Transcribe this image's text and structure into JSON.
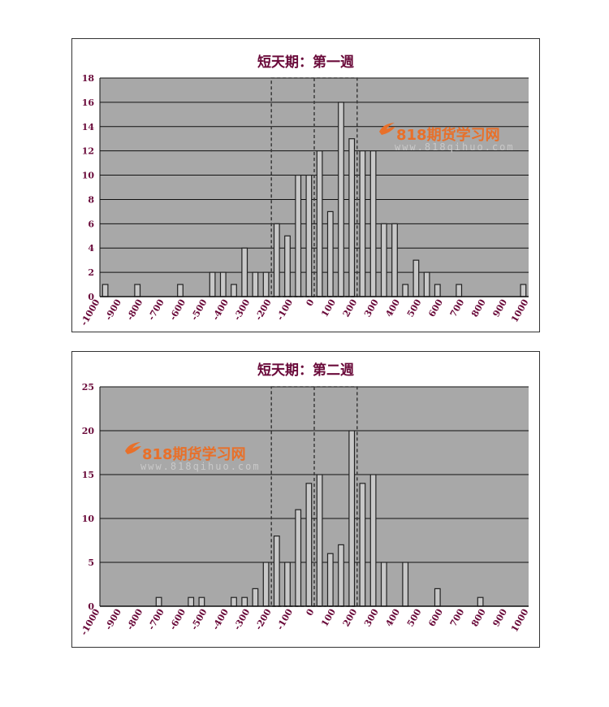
{
  "chart_data": [
    {
      "type": "bar",
      "title": "短天期：第一週",
      "xlabel": "",
      "ylabel": "",
      "ylim": [
        0,
        18
      ],
      "yticks": [
        0,
        2,
        4,
        6,
        8,
        10,
        12,
        14,
        16,
        18
      ],
      "xlim": [
        -1000,
        1000
      ],
      "xticks": [
        "-1000",
        "-900",
        "-800",
        "-700",
        "-600",
        "-500",
        "-400",
        "-300",
        "-200",
        "-100",
        "0",
        "100",
        "200",
        "300",
        "400",
        "500",
        "600",
        "700",
        "800",
        "900",
        "1000"
      ],
      "grid": "horizontal",
      "highlight_range": [
        -200,
        200
      ],
      "x": [
        -975,
        -825,
        -625,
        -475,
        -425,
        -375,
        -325,
        -275,
        -225,
        -175,
        -125,
        -75,
        -25,
        25,
        75,
        125,
        175,
        225,
        275,
        325,
        375,
        425,
        475,
        525,
        575,
        675,
        975
      ],
      "values": [
        1,
        1,
        1,
        2,
        2,
        1,
        4,
        2,
        2,
        6,
        5,
        10,
        10,
        12,
        7,
        16,
        13,
        12,
        12,
        6,
        6,
        1,
        3,
        2,
        1,
        1,
        1
      ]
    },
    {
      "type": "bar",
      "title": "短天期：第二週",
      "xlabel": "",
      "ylabel": "",
      "ylim": [
        0,
        25
      ],
      "yticks": [
        0,
        5,
        10,
        15,
        20,
        25
      ],
      "xlim": [
        -1000,
        1000
      ],
      "xticks": [
        "-1000",
        "-900",
        "-800",
        "-700",
        "-600",
        "-500",
        "-400",
        "-300",
        "-200",
        "-100",
        "0",
        "100",
        "200",
        "300",
        "400",
        "500",
        "600",
        "700",
        "800",
        "900",
        "1000"
      ],
      "grid": "horizontal",
      "highlight_range": [
        -200,
        200
      ],
      "x": [
        -725,
        -575,
        -525,
        -375,
        -325,
        -275,
        -225,
        -175,
        -125,
        -75,
        -25,
        25,
        75,
        125,
        175,
        225,
        275,
        325,
        425,
        575,
        775
      ],
      "values": [
        1,
        1,
        1,
        1,
        1,
        2,
        5,
        8,
        5,
        11,
        14,
        15,
        6,
        7,
        20,
        14,
        15,
        5,
        5,
        2,
        1
      ]
    }
  ],
  "watermark": {
    "text": "818期货学习网",
    "url": "www.818qihuo.com",
    "color": "#e8702a"
  },
  "colors": {
    "plot_bg": "#a8a8a8",
    "bar_fill": "#c8c8c8",
    "bar_stroke": "#222222",
    "axis_label": "#6a0a3a"
  }
}
